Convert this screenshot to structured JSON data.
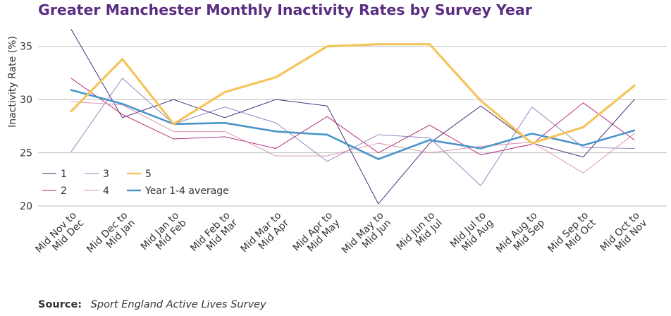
{
  "title": "Greater Manchester Monthly Inactivity Rates by Survey Year",
  "source": {
    "label": "Source:",
    "text": "Sport England Active Lives Survey"
  },
  "chart_data": {
    "type": "line",
    "ylabel": "Inactivity Rate (%)",
    "xlabel": "",
    "ylim": [
      20,
      37.5
    ],
    "yticks": [
      20,
      25,
      30,
      35
    ],
    "grid": "horizontal",
    "legend_position": "bottom-left",
    "categories": [
      "Mid Nov to Mid Dec",
      "Mid Dec to Mid Jan",
      "Mid Jan to Mid Feb",
      "Mid Feb to Mid Mar",
      "Mid Mar to Mid Apr",
      "Mid Apr to Mid May",
      "Mid May to Mid Jun",
      "Mid Jun to Mid Jul",
      "Mid Jul to Mid Aug",
      "Mid Aug to Mid Sep",
      "Mid Sep to Mid Oct",
      "Mid Oct to Mid Nov"
    ],
    "series": [
      {
        "name": "1",
        "color": "#3b1a6b",
        "width": 0.9,
        "values": [
          36.6,
          28.3,
          30.0,
          28.3,
          30.0,
          29.4,
          20.2,
          25.9,
          29.4,
          25.9,
          24.6,
          30.0
        ]
      },
      {
        "name": "2",
        "color": "#b0176e",
        "width": 0.9,
        "values": [
          32.0,
          28.6,
          26.3,
          26.5,
          25.4,
          28.4,
          25.0,
          27.6,
          24.8,
          25.8,
          29.7,
          26.2
        ]
      },
      {
        "name": "3",
        "color": "#8a7bb8",
        "width": 0.9,
        "values": [
          25.1,
          32.0,
          27.7,
          29.3,
          27.8,
          24.2,
          26.7,
          26.4,
          21.9,
          29.3,
          25.5,
          25.4
        ]
      },
      {
        "name": "4",
        "color": "#d98aa8",
        "width": 0.9,
        "values": [
          29.8,
          29.5,
          27.0,
          27.0,
          24.7,
          24.7,
          25.9,
          25.0,
          25.6,
          26.0,
          23.1,
          26.8
        ]
      },
      {
        "name": "5",
        "color": "#f5c45a",
        "width": 3.2,
        "values": [
          28.9,
          33.8,
          27.7,
          30.7,
          32.1,
          35.0,
          35.2,
          35.2,
          29.9,
          25.9,
          27.4,
          31.3
        ]
      },
      {
        "name": "Year 1-4 average",
        "color": "#4a95c8",
        "width": 2.6,
        "values": [
          30.9,
          29.6,
          27.7,
          27.8,
          27.0,
          26.7,
          24.4,
          26.2,
          25.4,
          26.8,
          25.7,
          27.1
        ]
      }
    ]
  }
}
